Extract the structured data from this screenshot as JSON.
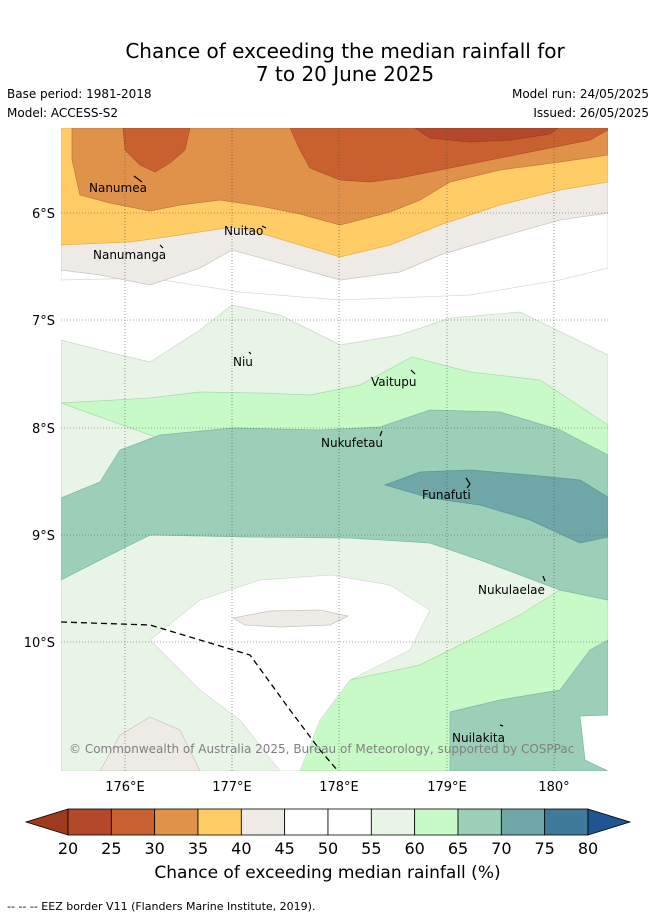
{
  "title_line1": "Chance of exceeding the median rainfall for",
  "title_line2": "7 to 20 June 2025",
  "base_period": "Base period: 1981-2018",
  "model": "Model: ACCESS-S2",
  "model_run": "Model run: 24/05/2025",
  "issued": "Issued: 26/05/2025",
  "copyright": "© Commonwealth of Australia 2025, Bureau of Meteorology, supported by COSPPac",
  "lat_ticks": [
    "6°S",
    "7°S",
    "8°S",
    "9°S",
    "10°S"
  ],
  "lon_ticks": [
    "176°E",
    "177°E",
    "178°E",
    "179°E",
    "180°"
  ],
  "places": [
    "Nanumea",
    "Nuitao",
    "Nanumanga",
    "Niu",
    "Vaitupu",
    "Nukufetau",
    "Funafuti",
    "Nukulaelae",
    "Nuilakita"
  ],
  "colorbar": {
    "ticks": [
      "20",
      "25",
      "30",
      "35",
      "40",
      "45",
      "50",
      "55",
      "60",
      "65",
      "70",
      "75",
      "80"
    ],
    "colors": [
      "#a03a1f",
      "#b5482a",
      "#c8612f",
      "#e0924a",
      "#ffcc66",
      "#eeeae5",
      "#ffffff",
      "#ffffff",
      "#e8f5e6",
      "#c8fac8",
      "#9ccfb8",
      "#6fa7a8",
      "#3f7a99",
      "#1f5590"
    ],
    "title": "Chance of exceeding median rainfall (%)"
  },
  "footer": "-- -- -- EEZ border V11 (Flanders Marine Institute, 2019)."
}
